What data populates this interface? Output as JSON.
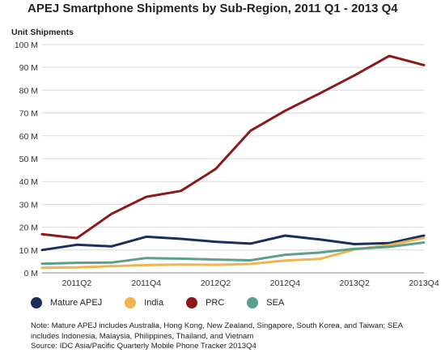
{
  "chart_data": {
    "type": "line",
    "title": "APEJ Smartphone Shipments by Sub-Region, 2011 Q1 - 2013 Q4",
    "ylabel": "Unit Shipments",
    "xlabel": "",
    "ylim": [
      0,
      100
    ],
    "yticks": [
      "0 M",
      "10 M",
      "20 M",
      "30 M",
      "40 M",
      "50 M",
      "60 M",
      "70 M",
      "80 M",
      "90 M",
      "100 M"
    ],
    "x": [
      "2011Q1",
      "2011Q2",
      "2011Q3",
      "2011Q4",
      "2012Q1",
      "2012Q2",
      "2012Q3",
      "2012Q4",
      "2013Q1",
      "2013Q2",
      "2013Q3",
      "2013Q4"
    ],
    "xtick_labels": [
      "2011Q2",
      "2011Q4",
      "2012Q2",
      "2012Q4",
      "2013Q2",
      "2013Q4"
    ],
    "grid": true,
    "legend_position": "bottom",
    "series": [
      {
        "name": "Mature APEJ",
        "color": "#1c2f5c",
        "values": [
          10,
          12.3,
          11.6,
          15.8,
          14.9,
          13.6,
          12.8,
          16.3,
          14.6,
          12.6,
          13.0,
          16.3
        ]
      },
      {
        "name": "India",
        "color": "#f0b550",
        "values": [
          2.2,
          2.4,
          2.9,
          3.4,
          3.6,
          3.5,
          3.9,
          5.4,
          6.1,
          10.2,
          12.2,
          15.3
        ]
      },
      {
        "name": "PRC",
        "color": "#8b1a1a",
        "values": [
          16.9,
          15.2,
          25.8,
          33.3,
          35.9,
          45.5,
          62.2,
          71.0,
          78.6,
          86.5,
          95.0,
          91.0
        ]
      },
      {
        "name": "SEA",
        "color": "#5aa08a",
        "values": [
          4.0,
          4.4,
          4.5,
          6.5,
          6.2,
          5.8,
          5.5,
          7.9,
          8.9,
          10.5,
          11.4,
          13.3
        ]
      }
    ],
    "note_lines": [
      "Note: Mature APEJ includes Australia, Hong Kong, New Zealand, Singapore, South Korea, and Taiwan; SEA",
      "includes Indonesia, Malaysia, Philippines, Thailand, and Vietnam",
      "Source: IDC Asia/Pacific Quarterly Mobile Phone Tracker 2013Q4"
    ]
  }
}
